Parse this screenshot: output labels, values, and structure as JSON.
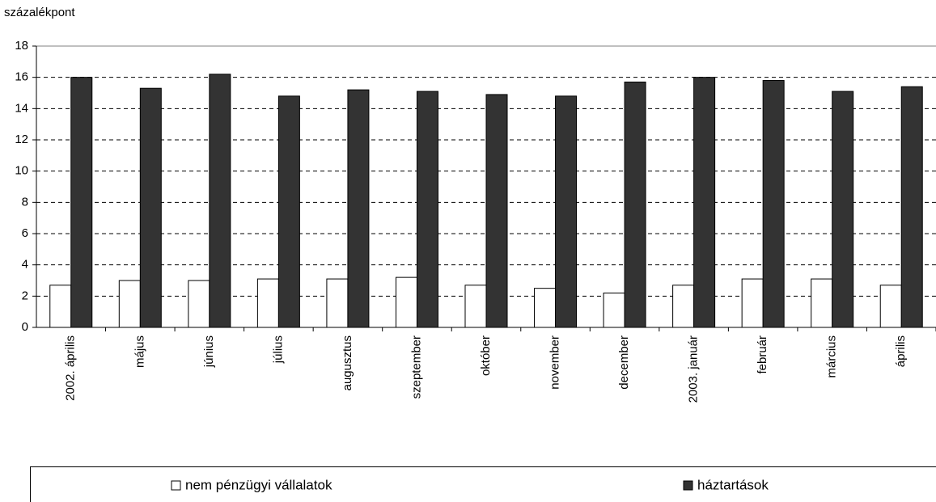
{
  "chart_data": {
    "type": "bar",
    "y_axis_label": "százalékpont",
    "categories": [
      "2002. április",
      "május",
      "június",
      "július",
      "augusztus",
      "szeptember",
      "október",
      "november",
      "december",
      "2003. január",
      "február",
      "március",
      "április"
    ],
    "series": [
      {
        "name": "nem pénzügyi vállalatok",
        "color": "#ffffff",
        "values": [
          2.7,
          3.0,
          3.0,
          3.1,
          3.1,
          3.2,
          2.7,
          2.5,
          2.2,
          2.7,
          3.1,
          3.1,
          2.7
        ]
      },
      {
        "name": "háztartások",
        "color": "#333333",
        "values": [
          16.0,
          15.3,
          16.2,
          14.8,
          15.2,
          15.1,
          14.9,
          14.8,
          15.7,
          16.0,
          15.8,
          15.1,
          15.4
        ]
      }
    ],
    "ylim": [
      0,
      18
    ],
    "yticks": [
      0,
      2,
      4,
      6,
      8,
      10,
      12,
      14,
      16,
      18
    ],
    "grid": true
  }
}
